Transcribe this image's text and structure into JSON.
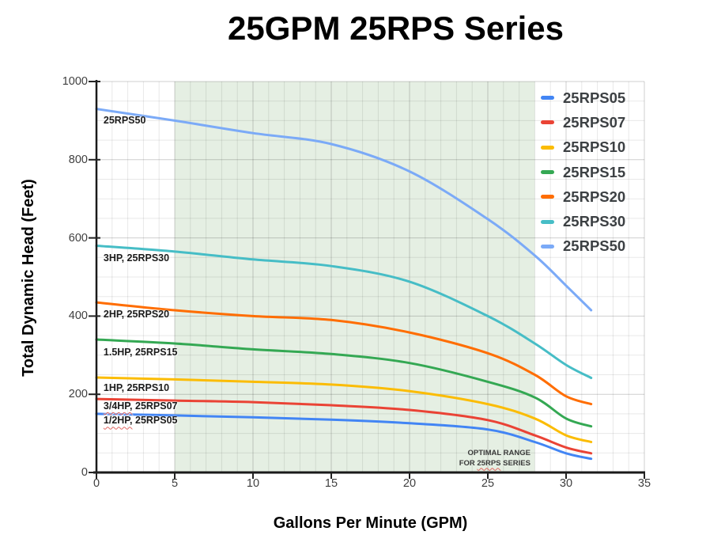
{
  "chart_data": {
    "type": "line",
    "title": "25GPM 25RPS Series",
    "xlabel": "Gallons Per Minute (GPM)",
    "ylabel": "Total Dynamic Head (Feet)",
    "xlim": [
      0,
      35
    ],
    "ylim": [
      0,
      1000
    ],
    "x_ticks": [
      0,
      5,
      10,
      15,
      20,
      25,
      30,
      35
    ],
    "y_ticks": [
      0,
      200,
      400,
      600,
      800,
      1000
    ],
    "x_minor_step": 1,
    "y_minor_step": 50,
    "grid": "on",
    "legend_position": "top-right-inside",
    "optimal_band": {
      "x_start": 5,
      "x_end": 28,
      "color": "#e5efe3",
      "note_line1": "OPTIMAL RANGE",
      "note_line2_prefix": "FOR ",
      "note_line2_wavy": "25RPS",
      "note_line2_suffix": " SERIES"
    },
    "x": [
      0,
      5,
      10,
      15,
      20,
      25,
      28,
      30,
      31.6
    ],
    "series": [
      {
        "name": "25RPS05",
        "color": "#4285F4",
        "curve_label_wavy": "1/2HP,",
        "curve_label_rest": " 25RPS05",
        "label_x": 0.45,
        "label_y": 133,
        "values": [
          150,
          146,
          141,
          135,
          126,
          110,
          78,
          49,
          35
        ]
      },
      {
        "name": "25RPS07",
        "color": "#EA4335",
        "curve_label_wavy": "3/4HP,",
        "curve_label_rest": " 25RPS07",
        "label_x": 0.45,
        "label_y": 170,
        "values": [
          188,
          184,
          180,
          172,
          160,
          134,
          95,
          64,
          49
        ]
      },
      {
        "name": "25RPS10",
        "color": "#FBBC04",
        "curve_label_wavy": "",
        "curve_label_rest": "1HP, 25RPS10",
        "label_x": 0.45,
        "label_y": 217,
        "values": [
          243,
          238,
          232,
          225,
          208,
          175,
          138,
          95,
          78
        ]
      },
      {
        "name": "25RPS15",
        "color": "#34A853",
        "curve_label_wavy": "",
        "curve_label_rest": "1.5HP, 25RPS15",
        "label_x": 0.45,
        "label_y": 308,
        "values": [
          340,
          330,
          315,
          303,
          280,
          232,
          192,
          138,
          118
        ]
      },
      {
        "name": "25RPS20",
        "color": "#FF6D01",
        "curve_label_wavy": "",
        "curve_label_rest": "2HP, 25RPS20",
        "label_x": 0.45,
        "label_y": 404,
        "values": [
          435,
          415,
          400,
          390,
          358,
          305,
          250,
          195,
          175
        ]
      },
      {
        "name": "25RPS30",
        "color": "#46BDC6",
        "curve_label_wavy": "",
        "curve_label_rest": "3HP, 25RPS30",
        "label_x": 0.45,
        "label_y": 548,
        "values": [
          580,
          565,
          545,
          528,
          488,
          400,
          330,
          275,
          242
        ]
      },
      {
        "name": "25RPS50",
        "color": "#7BAAF7",
        "curve_label_wavy": "",
        "curve_label_rest": "25RPS50",
        "label_x": 0.45,
        "label_y": 900,
        "values": [
          930,
          900,
          868,
          840,
          770,
          648,
          555,
          478,
          415
        ]
      }
    ]
  },
  "colors": {
    "axis": "#1a1a1a",
    "tick": "#222222",
    "grid_minor": "rgba(0,0,0,0.09)",
    "grid_major": "rgba(0,0,0,0.19)"
  }
}
